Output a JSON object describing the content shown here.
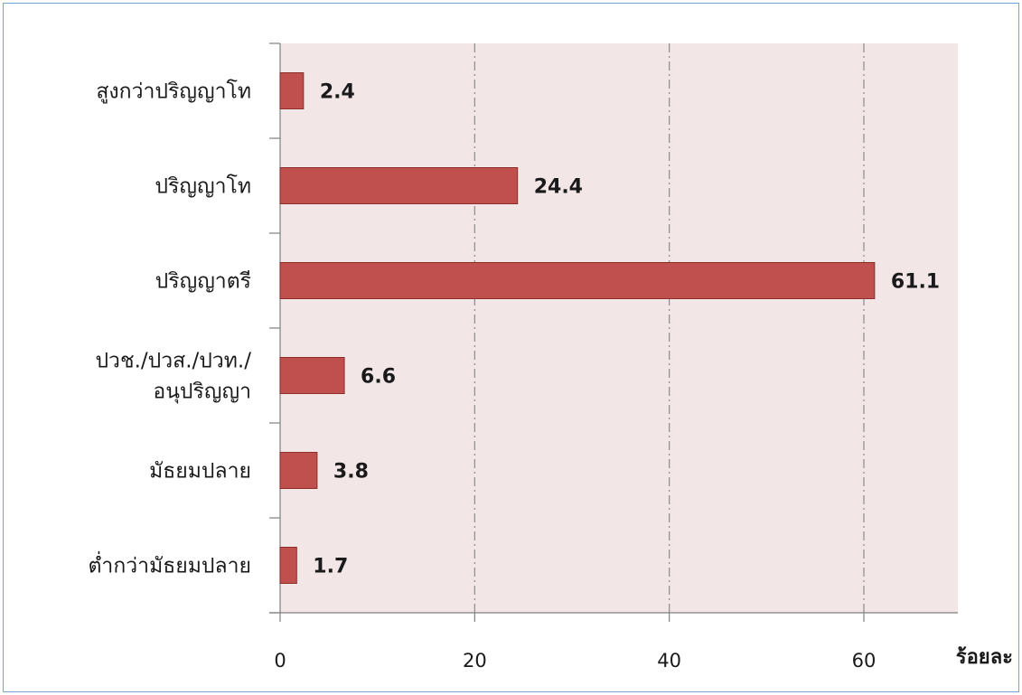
{
  "chart_data": {
    "type": "bar",
    "orientation": "horizontal",
    "categories": [
      [
        "สูงกว่าปริญญาโท"
      ],
      [
        "ปริญญาโท"
      ],
      [
        "ปริญญาตรี"
      ],
      [
        "ปวช./ปวส./ปวท./",
        "อนุปริญญา"
      ],
      [
        "มัธยมปลาย"
      ],
      [
        "ต่ำกว่ามัธยมปลาย"
      ]
    ],
    "values": [
      2.4,
      24.4,
      61.1,
      6.6,
      3.8,
      1.7
    ],
    "value_labels": [
      "2.4",
      "24.4",
      "61.1",
      "6.6",
      "3.8",
      "1.7"
    ],
    "xlim": [
      0,
      70
    ],
    "xticks": [
      0,
      20,
      40,
      60
    ],
    "xtick_labels": [
      "0",
      "20",
      "40",
      "60"
    ],
    "xlabel": "ร้อยละ",
    "grid": "vertical dash-dot",
    "legend": "none",
    "colors": {
      "bar_fill": "#c0504d",
      "bar_stroke": "#8c2d2a",
      "plot_background": "#f2e6e6",
      "gridline": "#8c8c8c",
      "axis": "#808080",
      "frame_border": "#7aa3d4"
    }
  }
}
